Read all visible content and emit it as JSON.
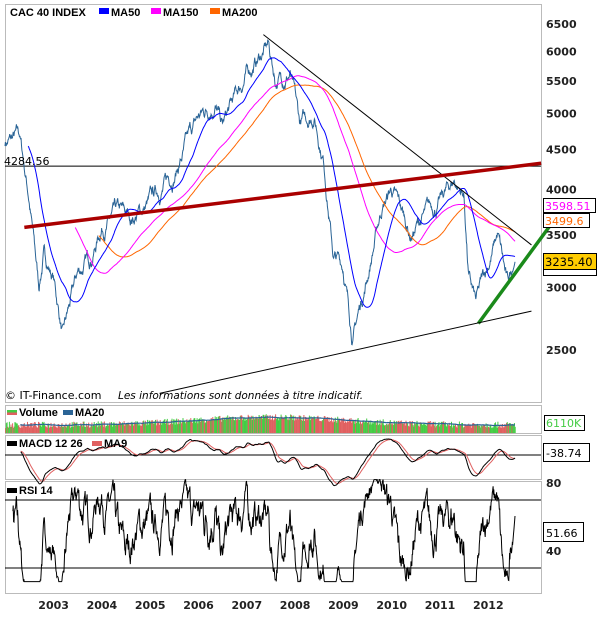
{
  "chart_data": [
    {
      "type": "line",
      "title": "CAC 40 INDEX",
      "legend": [
        {
          "name": "CAC 40 INDEX",
          "color": "#2a6496"
        },
        {
          "name": "MA50",
          "color": "#0000ff"
        },
        {
          "name": "MA150",
          "color": "#ff00ff"
        },
        {
          "name": "MA200",
          "color": "#ff6600"
        }
      ],
      "y_scale": "log",
      "ylim": [
        2200,
        6800
      ],
      "y_ticks": [
        2500,
        3000,
        3500,
        4000,
        4500,
        5000,
        5500,
        6000,
        6500
      ],
      "x_ticks": [
        "2003",
        "2004",
        "2005",
        "2006",
        "2007",
        "2008",
        "2009",
        "2010",
        "2011",
        "2012"
      ],
      "xlim": [
        2002.0,
        2013.0
      ],
      "price_anchors": {
        "x": [
          2002.0,
          2002.3,
          2002.5,
          2002.7,
          2002.8,
          2003.0,
          2003.2,
          2003.5,
          2003.8,
          2004.0,
          2004.3,
          2004.6,
          2005.0,
          2005.5,
          2006.0,
          2006.35,
          2006.5,
          2007.0,
          2007.45,
          2007.6,
          2007.9,
          2008.1,
          2008.4,
          2008.6,
          2008.8,
          2009.0,
          2009.2,
          2009.5,
          2009.8,
          2010.0,
          2010.4,
          2010.6,
          2011.0,
          2011.3,
          2011.5,
          2011.6,
          2011.75,
          2012.0,
          2012.2,
          2012.4,
          2012.5,
          2012.56
        ],
        "y": [
          4600,
          4650,
          3900,
          3000,
          3300,
          3100,
          2600,
          3100,
          3300,
          3600,
          3700,
          3650,
          3850,
          4200,
          4900,
          5200,
          4800,
          5600,
          6100,
          5500,
          5650,
          4800,
          5000,
          4400,
          3300,
          3200,
          2600,
          3100,
          3800,
          4000,
          3500,
          3650,
          3850,
          4100,
          3950,
          3100,
          2850,
          3200,
          3500,
          3000,
          3150,
          3235.4
        ]
      },
      "horizontal_line": {
        "value": 4284.56,
        "label": "4284.56"
      },
      "value_labels": [
        {
          "name": "MA150",
          "value": "3598.51",
          "color": "#ff00ff"
        },
        {
          "name": "MA200",
          "value": "3499.6",
          "color": "#ff6600"
        },
        {
          "name": "last",
          "value": "3235.40",
          "color": "#ffcc00"
        }
      ],
      "trendlines": [
        {
          "color": "#000000",
          "from": [
            2007.35,
            6300
          ],
          "to": [
            2012.9,
            3400
          ]
        },
        {
          "color": "#aa0000",
          "from": [
            2002.4,
            3580
          ],
          "to": [
            2013.1,
            4320
          ]
        },
        {
          "color": "#1a8a1a",
          "from": [
            2011.8,
            2700
          ],
          "to": [
            2013.5,
            3750
          ]
        },
        {
          "color": "#000000",
          "from": [
            2005.2,
            2200
          ],
          "to": [
            2012.9,
            2800
          ]
        }
      ],
      "credit": "© IT-Finance.com",
      "disclaimer": "Les informations sont données à titre indicatif."
    },
    {
      "type": "bar",
      "title": "Volume",
      "legend": [
        "Volume",
        "MA20"
      ],
      "last_value": "6110K",
      "colors": {
        "up": "#44cc44",
        "down": "#e06060",
        "ma": "#2a6496"
      }
    },
    {
      "type": "line",
      "title": "MACD 12 26",
      "legend": [
        "MACD 12 26",
        "MA9"
      ],
      "last_value": "-38.74",
      "colors": {
        "macd": "#000000",
        "signal": "#e06060"
      }
    },
    {
      "type": "line",
      "title": "RSI 14",
      "legend": [
        "RSI 14"
      ],
      "last_value": "51.66",
      "y_ticks": [
        40,
        80
      ],
      "levels": [
        30,
        70
      ]
    }
  ]
}
